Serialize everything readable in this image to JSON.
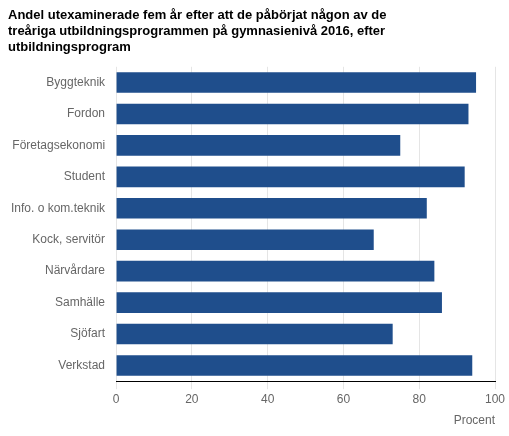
{
  "chart_data": {
    "type": "bar",
    "orientation": "horizontal",
    "title": [
      "Andel utexaminerade fem år efter att de påbörjat någon av de",
      "treåriga utbildningsprogrammen på gymnasienivå 2016, efter",
      "utbildningsprogram"
    ],
    "categories": [
      "Verkstad",
      "Sjöfart",
      "Samhälle",
      "Närvårdare",
      "Kock, servitör",
      "Info. o kom.teknik",
      "Student",
      "Företagsekonomi",
      "Fordon",
      "Byggteknik"
    ],
    "values": [
      94,
      73,
      86,
      84,
      68,
      82,
      92,
      75,
      93,
      95
    ],
    "color": "#1F4E8C",
    "xlabel": "Procent",
    "xlim": [
      0,
      100
    ],
    "xticks": [
      0,
      20,
      40,
      60,
      80,
      100
    ],
    "grid": true
  }
}
